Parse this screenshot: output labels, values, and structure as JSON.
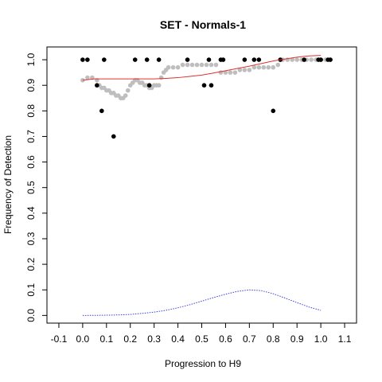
{
  "chart_data": {
    "type": "scatter",
    "title": "SET - Normals-1",
    "xlabel": "Progression to H9",
    "ylabel": "Frequency of Detection",
    "xlim": [
      -0.15,
      1.15
    ],
    "ylim": [
      -0.03,
      1.05
    ],
    "x_ticks": [
      -0.1,
      0.0,
      0.1,
      0.2,
      0.3,
      0.4,
      0.5,
      0.6,
      0.7,
      0.8,
      0.9,
      1.0,
      1.1
    ],
    "x_tick_labels": [
      "-0.1",
      "0.0",
      "0.1",
      "0.2",
      "0.3",
      "0.4",
      "0.5",
      "0.6",
      "0.7",
      "0.8",
      "0.9",
      "1.0",
      "1.1"
    ],
    "y_ticks": [
      0.0,
      0.1,
      0.2,
      0.3,
      0.4,
      0.5,
      0.6,
      0.7,
      0.8,
      0.9,
      1.0
    ],
    "y_tick_labels": [
      "0.0",
      "0.1",
      "0.2",
      "0.3",
      "0.4",
      "0.5",
      "0.6",
      "0.7",
      "0.8",
      "0.9",
      "1.0"
    ],
    "grid": false,
    "colors": {
      "observed": "#000000",
      "smoothed": "#bebebe",
      "fit_line": "#e0302f",
      "density_line": "#3a3ae0"
    },
    "series": [
      {
        "kind": "points",
        "color_key": "observed",
        "x": [
          0.0,
          0.02,
          0.06,
          0.08,
          0.09,
          0.13,
          0.22,
          0.27,
          0.28,
          0.32,
          0.44,
          0.51,
          0.53,
          0.54,
          0.58,
          0.59,
          0.68,
          0.72,
          0.74,
          0.8,
          0.83,
          0.93,
          0.99,
          1.0,
          1.03,
          1.04
        ],
        "y": [
          1.0,
          1.0,
          0.9,
          0.8,
          1.0,
          0.7,
          1.0,
          1.0,
          0.9,
          1.0,
          1.0,
          0.9,
          1.0,
          0.9,
          1.0,
          1.0,
          1.0,
          1.0,
          1.0,
          0.8,
          1.0,
          1.0,
          1.0,
          1.0,
          1.0,
          1.0
        ]
      },
      {
        "kind": "points",
        "color_key": "smoothed",
        "x": [
          0.0,
          0.02,
          0.04,
          0.06,
          0.07,
          0.08,
          0.09,
          0.1,
          0.11,
          0.12,
          0.13,
          0.14,
          0.15,
          0.16,
          0.17,
          0.18,
          0.19,
          0.2,
          0.21,
          0.22,
          0.23,
          0.24,
          0.25,
          0.26,
          0.27,
          0.28,
          0.29,
          0.3,
          0.31,
          0.32,
          0.33,
          0.34,
          0.35,
          0.36,
          0.38,
          0.4,
          0.42,
          0.44,
          0.46,
          0.48,
          0.5,
          0.52,
          0.54,
          0.56,
          0.58,
          0.6,
          0.62,
          0.64,
          0.66,
          0.68,
          0.7,
          0.72,
          0.74,
          0.76,
          0.78,
          0.8,
          0.82,
          0.84,
          0.86,
          0.88,
          0.9,
          0.92,
          0.94,
          0.96,
          0.98,
          1.0,
          1.02,
          1.04
        ],
        "y": [
          0.92,
          0.93,
          0.93,
          0.92,
          0.9,
          0.89,
          0.89,
          0.88,
          0.88,
          0.87,
          0.87,
          0.86,
          0.86,
          0.85,
          0.85,
          0.86,
          0.88,
          0.9,
          0.91,
          0.92,
          0.92,
          0.91,
          0.91,
          0.9,
          0.9,
          0.89,
          0.89,
          0.9,
          0.9,
          0.9,
          0.93,
          0.95,
          0.96,
          0.97,
          0.97,
          0.97,
          0.98,
          0.98,
          0.98,
          0.98,
          0.98,
          0.98,
          0.98,
          0.98,
          0.95,
          0.95,
          0.95,
          0.95,
          0.96,
          0.96,
          0.96,
          0.97,
          0.97,
          0.97,
          0.97,
          0.97,
          0.98,
          1.0,
          1.0,
          1.0,
          1.0,
          1.0,
          1.0,
          1.0,
          1.0,
          1.0,
          1.0,
          1.0
        ]
      },
      {
        "kind": "line",
        "color_key": "fit_line",
        "x": [
          0.0,
          0.05,
          0.1,
          0.15,
          0.2,
          0.25,
          0.3,
          0.35,
          0.4,
          0.45,
          0.5,
          0.55,
          0.6,
          0.65,
          0.7,
          0.75,
          0.8,
          0.85,
          0.9,
          0.95,
          1.0
        ],
        "y": [
          0.92,
          0.925,
          0.925,
          0.925,
          0.925,
          0.925,
          0.925,
          0.927,
          0.93,
          0.935,
          0.94,
          0.948,
          0.957,
          0.966,
          0.975,
          0.985,
          0.995,
          1.003,
          1.01,
          1.015,
          1.017
        ]
      },
      {
        "kind": "line",
        "color_key": "density_line",
        "dashed": true,
        "x": [
          0.0,
          0.05,
          0.1,
          0.15,
          0.2,
          0.25,
          0.3,
          0.35,
          0.4,
          0.45,
          0.5,
          0.55,
          0.6,
          0.65,
          0.7,
          0.75,
          0.8,
          0.85,
          0.9,
          0.95,
          1.0
        ],
        "y": [
          0.0,
          0.0003,
          0.001,
          0.002,
          0.004,
          0.008,
          0.013,
          0.02,
          0.03,
          0.042,
          0.056,
          0.07,
          0.083,
          0.094,
          0.1,
          0.097,
          0.085,
          0.068,
          0.05,
          0.033,
          0.02
        ]
      }
    ]
  }
}
